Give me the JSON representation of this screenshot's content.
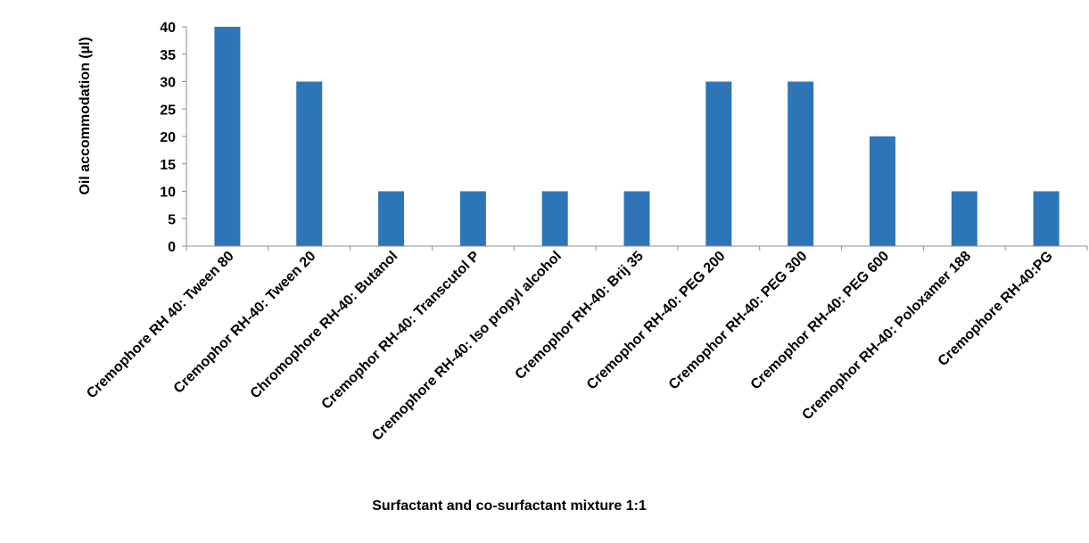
{
  "chart_data": {
    "type": "bar",
    "title": "",
    "xlabel": "Surfactant and co-surfactant mixture 1:1",
    "ylabel": "Oil accommodation (µl)",
    "ylim": [
      0,
      40
    ],
    "yticks": [
      0,
      5,
      10,
      15,
      20,
      25,
      30,
      35,
      40
    ],
    "grid": false,
    "legend": "none",
    "bar_color": "#2E75B6",
    "categories": [
      "Cremophore RH 40: Tween 80",
      "Cremophor RH-40: Tween 20",
      "Chromophore RH-40: Butanol",
      "Cremophor RH-40: Transcutol P",
      "Cremophore RH-40: Iso propyl alcohol",
      "Cremophor RH-40: Brij 35",
      "Cremophor RH-40: PEG 200",
      "Cremophor RH-40: PEG 300",
      "Cremophor RH-40: PEG 600",
      "Cremophor RH-40: Poloxamer 188",
      "Cremophore RH-40:PG"
    ],
    "values": [
      40,
      30,
      10,
      10,
      10,
      10,
      30,
      30,
      20,
      10,
      10
    ]
  }
}
